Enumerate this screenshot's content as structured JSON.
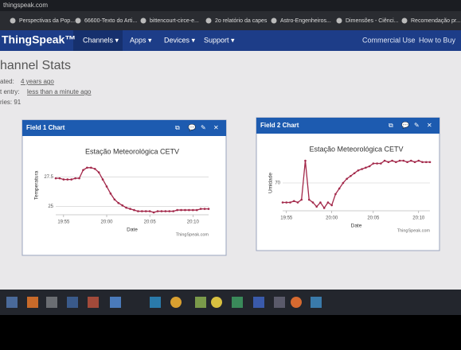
{
  "browser": {
    "tab": "thingspeak.com",
    "bookmarks": [
      "Perspectivas da Pop...",
      "66600-Texto do Arti...",
      "bittencourt-circe-e...",
      "2o relatório da capes",
      "Astro-Engenheiros...",
      "Dimensões - Ciênci...",
      "Recomendação pr..."
    ]
  },
  "navbar": {
    "brand": "ThingSpeak™",
    "menus": [
      "Channels ▾",
      "Apps ▾",
      "Devices ▾",
      "Support ▾"
    ],
    "links": [
      "Commercial Use",
      "How to Buy"
    ]
  },
  "page": {
    "title": "hannel Stats",
    "stats": [
      {
        "label": "ated:",
        "value": "4 years ago"
      },
      {
        "label": "t entry:",
        "value": "less than a minute ago"
      },
      {
        "label": "ries: 91"
      }
    ]
  },
  "chart_data": [
    {
      "type": "line",
      "panel_title": "Field 1 Chart",
      "title": "Estação Meteorológica CETV",
      "y_label": "Temperatura",
      "x_label": "Date",
      "credit": "ThingSpeak.com",
      "color": "#a3284a",
      "values": [
        27.4,
        27.4,
        27.3,
        27.3,
        27.3,
        27.4,
        27.4,
        28.1,
        28.3,
        28.3,
        28.2,
        27.9,
        27.3,
        26.7,
        26.1,
        25.6,
        25.3,
        25.1,
        24.9,
        24.8,
        24.7,
        24.6,
        24.6,
        24.6,
        24.6,
        24.5,
        24.6,
        24.6,
        24.6,
        24.6,
        24.6,
        24.7,
        24.7,
        24.7,
        24.7,
        24.7,
        24.7,
        24.8,
        24.8,
        24.8
      ],
      "xlim": [
        0,
        39
      ],
      "xticks": [
        {
          "value": 2,
          "label": "19:55"
        },
        {
          "value": 13,
          "label": "20:00"
        },
        {
          "value": 24,
          "label": "20:05"
        },
        {
          "value": 35,
          "label": "20:10"
        }
      ],
      "ylim": [
        24.3,
        29.3
      ],
      "yticks": [
        25,
        27.5
      ],
      "grid": true
    },
    {
      "type": "line",
      "panel_title": "Field 2 Chart",
      "title": "Estação Meteorológica CETV",
      "y_label": "Umidade",
      "x_label": "Date",
      "credit": "ThingSpeak.com",
      "color": "#a3284a",
      "values": [
        63,
        63,
        63,
        63.5,
        63,
        64,
        78,
        64,
        63,
        61.5,
        63,
        61,
        63,
        62,
        66,
        68,
        70,
        71.5,
        72.5,
        73.5,
        74.5,
        75,
        75.5,
        76,
        77,
        77,
        77,
        78,
        77.5,
        78,
        77.5,
        78,
        78,
        77.5,
        78,
        77.5,
        78,
        77.5,
        77.5,
        77.5
      ],
      "xlim": [
        0,
        39
      ],
      "xticks": [
        {
          "value": 1,
          "label": "19:55"
        },
        {
          "value": 13,
          "label": "20:00"
        },
        {
          "value": 24,
          "label": "20:05"
        },
        {
          "value": 36,
          "label": "20:10"
        }
      ],
      "ylim": [
        60,
        80
      ],
      "yticks": [
        70
      ],
      "grid": true
    }
  ]
}
